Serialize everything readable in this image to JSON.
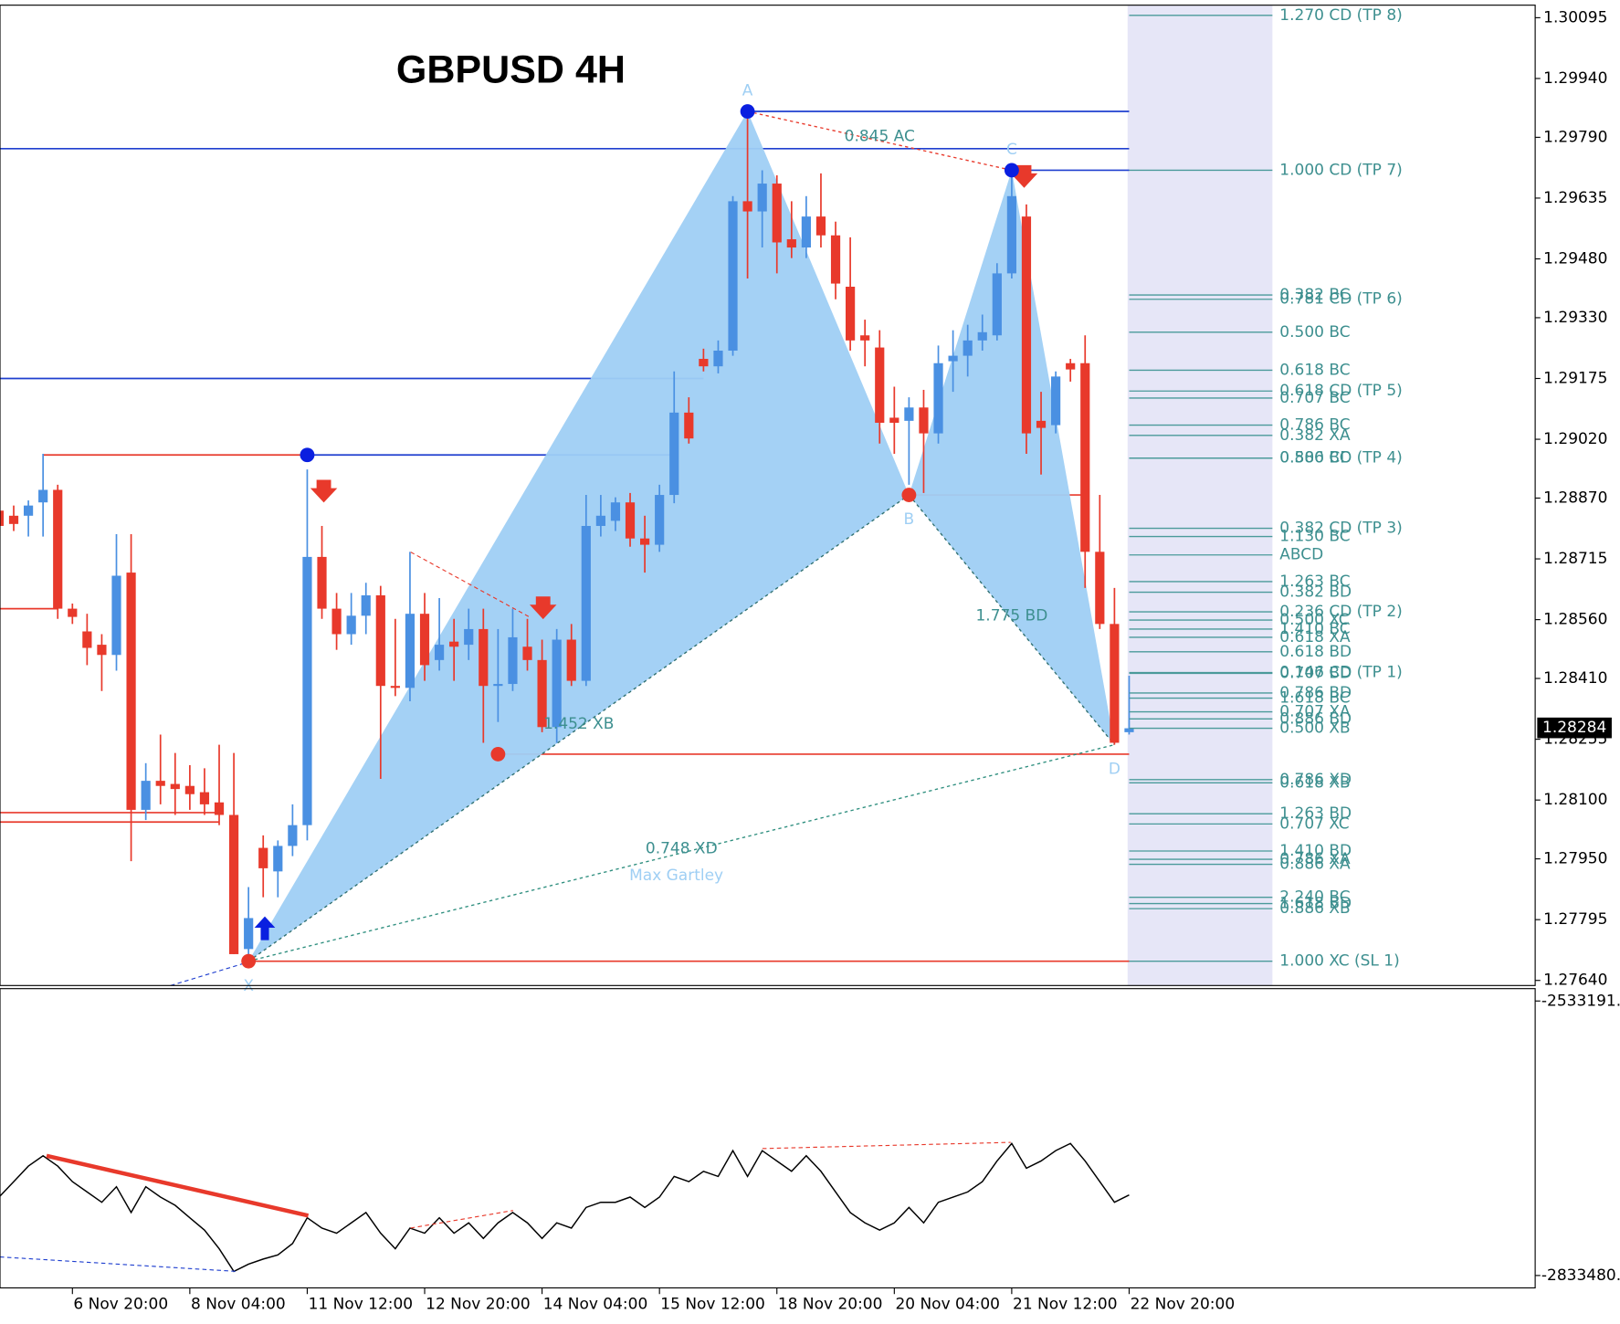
{
  "chart_data": [
    {
      "type": "candlestick",
      "title": "GBPUSD 4H",
      "up_color": "#4a90e2",
      "down_color": "#e8392b",
      "categories": [
        null,
        null,
        null,
        null,
        null,
        "6 Nov 20:00",
        null,
        null,
        null,
        null,
        null,
        null,
        null,
        "8 Nov 04:00",
        null,
        null,
        null,
        null,
        null,
        null,
        null,
        "11 Nov 12:00",
        null,
        null,
        null,
        null,
        null,
        null,
        null,
        "12 Nov 20:00",
        null,
        null,
        null,
        null,
        null,
        null,
        null,
        "14 Nov 04:00",
        null,
        null,
        null,
        null,
        null,
        null,
        null,
        "15 Nov 12:00",
        null,
        null,
        null,
        null,
        null,
        null,
        null,
        "18 Nov 20:00",
        null,
        null,
        null,
        null,
        null,
        null,
        null,
        "20 Nov 04:00",
        null,
        null,
        null,
        null,
        null,
        null,
        null,
        "21 Nov 12:00",
        null,
        null,
        null,
        null,
        null,
        null,
        null,
        "22 Nov 20:00"
      ],
      "ohlc": [
        [
          1.28838,
          1.28864,
          1.28759,
          1.28799
        ],
        [
          1.28825,
          1.28851,
          1.28786,
          1.28804
        ],
        [
          1.28825,
          1.28864,
          1.28772,
          1.28851
        ],
        [
          1.28859,
          1.28983,
          1.28772,
          1.28891
        ],
        [
          1.28891,
          1.28904,
          1.28562,
          1.28588
        ],
        [
          1.28588,
          1.28601,
          1.28549,
          1.28567
        ],
        [
          1.2853,
          1.28575,
          1.28444,
          1.28488
        ],
        [
          1.28496,
          1.28523,
          1.28378,
          1.2847
        ],
        [
          1.2847,
          1.28778,
          1.2843,
          1.28672
        ],
        [
          1.2868,
          1.28778,
          1.27944,
          1.28075
        ],
        [
          1.28075,
          1.28194,
          1.28049,
          1.28149
        ],
        [
          1.28149,
          1.28267,
          1.28089,
          1.28136
        ],
        [
          1.28141,
          1.2822,
          1.28062,
          1.28128
        ],
        [
          1.28136,
          1.28189,
          1.28075,
          1.28115
        ],
        [
          1.2812,
          1.28181,
          1.28062,
          1.28089
        ],
        [
          1.28094,
          1.28241,
          1.28036,
          1.28062
        ],
        [
          1.28062,
          1.2822,
          1.27707,
          1.27707
        ],
        [
          1.2772,
          1.27878,
          1.27694,
          1.27799
        ],
        [
          1.27978,
          1.2801,
          1.27852,
          1.27926
        ],
        [
          1.27918,
          1.27997,
          1.27852,
          1.27983
        ],
        [
          1.27983,
          1.28089,
          1.27957,
          1.28036
        ],
        [
          1.28036,
          1.28943,
          1.27997,
          1.2872
        ],
        [
          1.2872,
          1.28799,
          1.28562,
          1.28588
        ],
        [
          1.28588,
          1.28628,
          1.28483,
          1.28523
        ],
        [
          1.28523,
          1.28628,
          1.28496,
          1.2857
        ],
        [
          1.2857,
          1.28654,
          1.28523,
          1.28622
        ],
        [
          1.28622,
          1.28646,
          1.28154,
          1.28391
        ],
        [
          1.28391,
          1.28562,
          1.28365,
          1.28386
        ],
        [
          1.28386,
          1.28733,
          1.28352,
          1.28575
        ],
        [
          1.28575,
          1.28628,
          1.28404,
          1.28444
        ],
        [
          1.28457,
          1.28615,
          1.2843,
          1.28496
        ],
        [
          1.28504,
          1.28562,
          1.28404,
          1.28491
        ],
        [
          1.28496,
          1.28588,
          1.28457,
          1.28536
        ],
        [
          1.28536,
          1.28588,
          1.28246,
          1.28391
        ],
        [
          1.28391,
          1.28536,
          1.28299,
          1.28396
        ],
        [
          1.28396,
          1.28588,
          1.28378,
          1.28515
        ],
        [
          1.28491,
          1.28562,
          1.2843,
          1.28457
        ],
        [
          1.28457,
          1.28509,
          1.28273,
          1.28286
        ],
        [
          1.28286,
          1.28536,
          1.28246,
          1.28509
        ],
        [
          1.28509,
          1.28549,
          1.28391,
          1.28404
        ],
        [
          1.28404,
          1.28878,
          1.28391,
          1.28799
        ],
        [
          1.28799,
          1.28878,
          1.28772,
          1.28825
        ],
        [
          1.28812,
          1.28872,
          1.28786,
          1.28859
        ],
        [
          1.28859,
          1.28883,
          1.28746,
          1.28767
        ],
        [
          1.28767,
          1.28825,
          1.2868,
          1.28751
        ],
        [
          1.28751,
          1.28904,
          1.28733,
          1.28878
        ],
        [
          1.28878,
          1.29193,
          1.28857,
          1.29088
        ],
        [
          1.29088,
          1.29127,
          1.29009,
          1.29022
        ],
        [
          1.29225,
          1.29251,
          1.29193,
          1.29206
        ],
        [
          1.29206,
          1.29272,
          1.29188,
          1.29246
        ],
        [
          1.29246,
          1.2964,
          1.29233,
          1.29627
        ],
        [
          1.29627,
          1.29856,
          1.2943,
          1.29601
        ],
        [
          1.29601,
          1.29706,
          1.29509,
          1.29672
        ],
        [
          1.29672,
          1.29693,
          1.29443,
          1.29522
        ],
        [
          1.2953,
          1.29627,
          1.29482,
          1.29509
        ],
        [
          1.29509,
          1.2964,
          1.29482,
          1.29588
        ],
        [
          1.29588,
          1.29698,
          1.29509,
          1.2954
        ],
        [
          1.2954,
          1.29575,
          1.29377,
          1.29417
        ],
        [
          1.29409,
          1.29535,
          1.29246,
          1.29272
        ],
        [
          1.29285,
          1.29325,
          1.29206,
          1.29272
        ],
        [
          1.29254,
          1.29298,
          1.29009,
          1.29062
        ],
        [
          1.29075,
          1.29154,
          1.28983,
          1.29062
        ],
        [
          1.29067,
          1.29127,
          1.28904,
          1.29101
        ],
        [
          1.29101,
          1.29146,
          1.28883,
          1.29035
        ],
        [
          1.29035,
          1.29259,
          1.29009,
          1.29214
        ],
        [
          1.29219,
          1.29298,
          1.29141,
          1.29233
        ],
        [
          1.29233,
          1.29312,
          1.2918,
          1.29272
        ],
        [
          1.29272,
          1.29338,
          1.29246,
          1.29293
        ],
        [
          1.29285,
          1.29469,
          1.29272,
          1.29443
        ],
        [
          1.29443,
          1.29706,
          1.2943,
          1.2964
        ],
        [
          1.29588,
          1.29619,
          1.28983,
          1.29035
        ],
        [
          1.29067,
          1.29141,
          1.2893,
          1.29049
        ],
        [
          1.29056,
          1.29193,
          1.29035,
          1.2918
        ],
        [
          1.29214,
          1.29225,
          1.29167,
          1.29198
        ],
        [
          1.29214,
          1.29285,
          1.28641,
          1.28733
        ],
        [
          1.28733,
          1.28878,
          1.28536,
          1.28549
        ],
        [
          1.28549,
          1.28641,
          1.28241,
          1.28246
        ],
        [
          1.28273,
          1.28417,
          1.28267,
          1.28283
        ]
      ],
      "ylim": [
        1.27627,
        1.30127
      ],
      "yticks": [
        1.30095,
        {
          "value": 1.2994,
          "label": "1.29940"
        },
        {
          "value": 1.2979,
          "label": "1.29790"
        },
        1.29635,
        {
          "value": 1.2948,
          "label": "1.29480"
        },
        {
          "value": 1.2933,
          "label": "1.29330"
        },
        1.29175,
        {
          "value": 1.2902,
          "label": "1.29020"
        },
        {
          "value": 1.2887,
          "label": "1.28870"
        },
        1.28715,
        {
          "value": 1.2856,
          "label": "1.28560"
        },
        {
          "value": 1.2841,
          "label": "1.28410"
        },
        1.28255,
        {
          "value": 1.281,
          "label": "1.28100"
        },
        {
          "value": 1.2795,
          "label": "1.27950"
        },
        1.27795,
        {
          "value": 1.2764,
          "label": "1.27640"
        }
      ],
      "current_price": 1.28284,
      "levels": [
        {
          "price": 1.29856,
          "from": 51,
          "to": 77,
          "color": "#1f3fcf"
        },
        {
          "price": 1.29761,
          "from": 0,
          "to": 77,
          "color": "#1f3fcf"
        },
        {
          "price": 1.29706,
          "from": 69,
          "to": 77,
          "color": "#1f3fcf"
        },
        {
          "price": 1.29175,
          "from": 0,
          "to": 48,
          "color": "#1f3fcf"
        },
        {
          "price": 1.2898,
          "from": 21,
          "to": 46,
          "color": "#1f3fcf"
        },
        {
          "price": 1.2898,
          "from": 3,
          "to": 21,
          "color": "#e8392b"
        },
        {
          "price": 1.28878,
          "from": 62,
          "to": 74,
          "color": "#e8392b"
        },
        {
          "price": 1.28588,
          "from": 0,
          "to": 4,
          "color": "#e8392b"
        },
        {
          "price": 1.28217,
          "from": 34,
          "to": 77,
          "color": "#e8392b"
        },
        {
          "price": 1.28068,
          "from": 0,
          "to": 15,
          "color": "#e8392b"
        },
        {
          "price": 1.28044,
          "from": 0,
          "to": 15,
          "color": "#e8392b"
        },
        {
          "price": 1.27689,
          "from": 17,
          "to": 77,
          "color": "#e8392b"
        }
      ],
      "markers": [
        {
          "index": 51,
          "price": 1.29856,
          "color": "#0a1fe0"
        },
        {
          "index": 69,
          "price": 1.29706,
          "color": "#0a1fe0"
        },
        {
          "index": 21,
          "price": 1.2898,
          "color": "#0a1fe0"
        },
        {
          "index": 17,
          "price": 1.27689,
          "color": "#e8392b"
        },
        {
          "index": 62,
          "price": 1.28878,
          "color": "#e8392b"
        },
        {
          "index": 34,
          "price": 1.28217,
          "color": "#e8392b"
        }
      ],
      "pattern": {
        "name": "Max Gartley",
        "color": "#9fcff4",
        "points": [
          {
            "label": "X",
            "index": 17,
            "price": 1.27689
          },
          {
            "label": "A",
            "index": 51,
            "price": 1.29856
          },
          {
            "label": "B",
            "index": 62,
            "price": 1.28878
          },
          {
            "label": "C",
            "index": 69,
            "price": 1.29706
          },
          {
            "label": "D",
            "index": 76,
            "price": 1.28241
          }
        ],
        "ratios": [
          {
            "text": "0.845 AC",
            "from": 1,
            "to": 3,
            "color": "#e8392b"
          },
          {
            "text": "1.452 XB",
            "from": 0,
            "to": 2,
            "color": "#2f6f6f"
          },
          {
            "text": "1.775 BD",
            "from": 2,
            "to": 4,
            "color": "#2f6f6f"
          },
          {
            "text": "0.748 XD",
            "from": 0,
            "to": 4,
            "color": "#2f8f7f"
          }
        ]
      },
      "fib_levels": [
        {
          "label": "1.270 CD (TP 8)",
          "price": 1.30101
        },
        {
          "label": "1.000 CD (TP 7)",
          "price": 1.29706
        },
        {
          "label": "0.382 BC",
          "price": 1.29388
        },
        {
          "label": "0.781 CD (TP 6)",
          "price": 1.29377
        },
        {
          "label": "0.500 BC",
          "price": 1.29293
        },
        {
          "label": "0.618 BC",
          "price": 1.29196
        },
        {
          "label": "0.618 CD (TP 5)",
          "price": 1.29143
        },
        {
          "label": "0.707 BC",
          "price": 1.29125
        },
        {
          "label": "0.786 BC",
          "price": 1.29056
        },
        {
          "label": "0.382 XA",
          "price": 1.2903
        },
        {
          "label": "0.886 BC",
          "price": 1.28972
        },
        {
          "label": "0.500 CD (TP 4)",
          "price": 1.28972
        },
        {
          "label": "0.382 CD (TP 3)",
          "price": 1.28793
        },
        {
          "label": "1.130 BC",
          "price": 1.28772
        },
        {
          "label": "ABCD",
          "price": 1.28725
        },
        {
          "label": "1.263 BC",
          "price": 1.28657
        },
        {
          "label": "0.382 BD",
          "price": 1.2863
        },
        {
          "label": "0.236 CD (TP 2)",
          "price": 1.2858
        },
        {
          "label": "0.500 XC",
          "price": 1.28559
        },
        {
          "label": "1.410 BC",
          "price": 1.28536
        },
        {
          "label": "0.618 XA",
          "price": 1.28515
        },
        {
          "label": "0.618 BD",
          "price": 1.28478
        },
        {
          "label": "0.146 CD (TP 1)",
          "price": 1.28425
        },
        {
          "label": "0.707 BD",
          "price": 1.28423
        },
        {
          "label": "0.786 BD",
          "price": 1.28373
        },
        {
          "label": "1.618 BC",
          "price": 1.2836
        },
        {
          "label": "0.707 XA",
          "price": 1.28325
        },
        {
          "label": "0.886 BD",
          "price": 1.28307
        },
        {
          "label": "0.500 XB",
          "price": 1.28283
        },
        {
          "label": "0.786 XD",
          "price": 1.28152
        },
        {
          "label": "0.618 XB",
          "price": 1.28144
        },
        {
          "label": "1.263 BD",
          "price": 1.28065
        },
        {
          "label": "0.707 XC",
          "price": 1.28039
        },
        {
          "label": "1.410 BD",
          "price": 1.2797
        },
        {
          "label": "0.786 XA",
          "price": 1.27949
        },
        {
          "label": "0.886 XA",
          "price": 1.27936
        },
        {
          "label": "2.240 BC",
          "price": 1.27852
        },
        {
          "label": "1.618 BD",
          "price": 1.27836
        },
        {
          "label": "0.886 XB",
          "price": 1.27823
        },
        {
          "label": "1.000 XC (SL 1)",
          "price": 1.27689
        }
      ]
    },
    {
      "type": "line",
      "color": "#000000",
      "values": [
        -2747700,
        -2730800,
        -2713800,
        -2702500,
        -2713800,
        -2730800,
        -2742100,
        -2753400,
        -2736400,
        -2764600,
        -2736400,
        -2747700,
        -2756700,
        -2770300,
        -2783800,
        -2804200,
        -2829000,
        -2821100,
        -2815500,
        -2810900,
        -2798500,
        -2770300,
        -2781600,
        -2787200,
        -2775900,
        -2764600,
        -2787200,
        -2804200,
        -2781600,
        -2787200,
        -2770300,
        -2787200,
        -2775900,
        -2792900,
        -2775900,
        -2764600,
        -2775900,
        -2792900,
        -2775900,
        -2781600,
        -2759000,
        -2753400,
        -2753400,
        -2747700,
        -2759000,
        -2747700,
        -2725100,
        -2730800,
        -2719500,
        -2725100,
        -2696900,
        -2725100,
        -2696900,
        -2708200,
        -2719500,
        -2702500,
        -2719500,
        -2742100,
        -2764600,
        -2775900,
        -2783800,
        -2775900,
        -2759000,
        -2775900,
        -2753400,
        -2747700,
        -2742100,
        -2730800,
        -2708200,
        -2689000,
        -2716100,
        -2708200,
        -2696900,
        -2689000,
        -2708200,
        -2730800,
        -2753400,
        -2745400
      ],
      "ylim": [
        -2847028,
        -2519643
      ],
      "yticks": [
        {
          "value": -2533191,
          "label": "-2533191."
        },
        {
          "value": -2833480,
          "label": "-2833480."
        }
      ]
    }
  ]
}
